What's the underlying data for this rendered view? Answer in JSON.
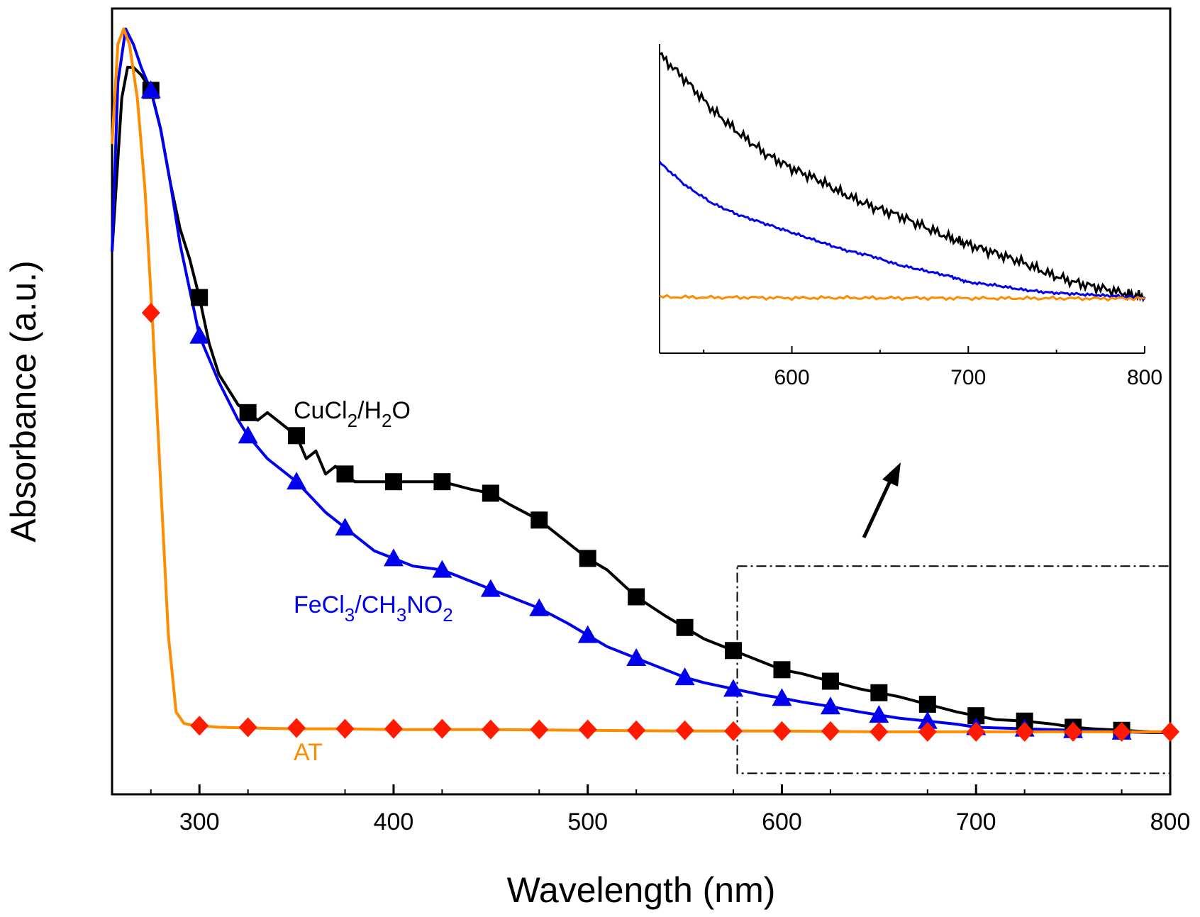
{
  "chart_data": {
    "main": {
      "type": "line",
      "title": "",
      "xlabel": "Wavelength (nm)",
      "ylabel": "Absorbance (a.u.)",
      "xlim": [
        255,
        800
      ],
      "ylim": [
        0,
        1.0
      ],
      "yticks_shown": false,
      "xticks": [
        300,
        400,
        500,
        600,
        700,
        800
      ],
      "xtick_labels": [
        "300",
        "400",
        "500",
        "600",
        "700",
        "800"
      ],
      "series": [
        {
          "name": "CuCl2/H2O",
          "color": "#000000",
          "marker": "square",
          "x": [
            255,
            260,
            263,
            266,
            270,
            275,
            280,
            285,
            290,
            295,
            300,
            305,
            310,
            315,
            320,
            325,
            330,
            335,
            340,
            345,
            350,
            355,
            360,
            365,
            370,
            375,
            380,
            390,
            400,
            410,
            425,
            440,
            450,
            460,
            475,
            490,
            500,
            510,
            525,
            540,
            550,
            560,
            575,
            590,
            600,
            610,
            625,
            640,
            650,
            660,
            675,
            690,
            700,
            710,
            725,
            740,
            750,
            760,
            775,
            790,
            800
          ],
          "y": [
            0.7,
            0.9,
            0.94,
            0.94,
            0.93,
            0.91,
            0.86,
            0.79,
            0.73,
            0.69,
            0.64,
            0.58,
            0.54,
            0.52,
            0.5,
            0.49,
            0.48,
            0.49,
            0.48,
            0.47,
            0.46,
            0.43,
            0.44,
            0.41,
            0.42,
            0.41,
            0.4,
            0.4,
            0.4,
            0.4,
            0.4,
            0.39,
            0.385,
            0.37,
            0.35,
            0.32,
            0.3,
            0.285,
            0.25,
            0.225,
            0.21,
            0.195,
            0.18,
            0.165,
            0.155,
            0.15,
            0.14,
            0.13,
            0.125,
            0.12,
            0.11,
            0.1,
            0.095,
            0.09,
            0.088,
            0.084,
            0.08,
            0.078,
            0.076,
            0.074,
            0.074
          ],
          "marker_x": [
            275,
            300,
            325,
            350,
            375,
            400,
            425,
            450,
            475,
            500,
            525,
            550,
            575,
            600,
            625,
            650,
            675,
            700,
            725,
            750,
            775
          ],
          "marker_y": [
            0.91,
            0.64,
            0.49,
            0.46,
            0.41,
            0.4,
            0.4,
            0.385,
            0.35,
            0.3,
            0.25,
            0.21,
            0.18,
            0.155,
            0.14,
            0.125,
            0.11,
            0.095,
            0.088,
            0.08,
            0.076
          ]
        },
        {
          "name": "FeCl3/CH3NO2",
          "color": "#0000ee",
          "marker": "triangle",
          "x": [
            255,
            258,
            262,
            266,
            270,
            275,
            280,
            285,
            290,
            300,
            310,
            320,
            325,
            335,
            350,
            365,
            375,
            390,
            400,
            410,
            425,
            440,
            450,
            460,
            475,
            490,
            500,
            510,
            525,
            540,
            550,
            560,
            575,
            590,
            600,
            610,
            625,
            640,
            650,
            660,
            675,
            690,
            700,
            725,
            750,
            775,
            790,
            800
          ],
          "y": [
            0.7,
            0.92,
            0.99,
            0.97,
            0.94,
            0.91,
            0.86,
            0.79,
            0.71,
            0.59,
            0.53,
            0.48,
            0.46,
            0.43,
            0.4,
            0.36,
            0.34,
            0.31,
            0.3,
            0.29,
            0.285,
            0.27,
            0.26,
            0.25,
            0.235,
            0.215,
            0.2,
            0.185,
            0.17,
            0.155,
            0.145,
            0.138,
            0.13,
            0.122,
            0.118,
            0.113,
            0.107,
            0.1,
            0.096,
            0.092,
            0.088,
            0.084,
            0.08,
            0.078,
            0.076,
            0.074,
            0.073,
            0.073
          ],
          "marker_x": [
            275,
            300,
            325,
            350,
            375,
            400,
            425,
            450,
            475,
            500,
            525,
            550,
            575,
            600,
            625,
            650,
            675,
            700,
            725,
            750,
            775
          ],
          "marker_y": [
            0.91,
            0.59,
            0.46,
            0.4,
            0.34,
            0.3,
            0.285,
            0.26,
            0.235,
            0.2,
            0.17,
            0.145,
            0.13,
            0.118,
            0.107,
            0.096,
            0.088,
            0.08,
            0.078,
            0.076,
            0.074
          ]
        },
        {
          "name": "AT",
          "color": "#ff8c00",
          "marker": "diamond",
          "marker_color": "#ff1a00",
          "x": [
            255,
            258,
            261,
            264,
            268,
            272,
            276,
            280,
            284,
            288,
            292,
            296,
            300,
            310,
            325,
            350,
            375,
            400,
            450,
            500,
            550,
            600,
            650,
            700,
            750,
            800
          ],
          "y": [
            0.84,
            0.97,
            0.99,
            0.97,
            0.9,
            0.78,
            0.6,
            0.4,
            0.2,
            0.1,
            0.085,
            0.083,
            0.082,
            0.08,
            0.079,
            0.078,
            0.078,
            0.077,
            0.077,
            0.076,
            0.075,
            0.075,
            0.074,
            0.074,
            0.074,
            0.074
          ],
          "marker_x": [
            275,
            300,
            325,
            350,
            375,
            400,
            425,
            450,
            475,
            500,
            525,
            550,
            575,
            600,
            625,
            650,
            675,
            700,
            725,
            750,
            775,
            800
          ],
          "marker_y": [
            0.62,
            0.082,
            0.08,
            0.079,
            0.078,
            0.078,
            0.078,
            0.077,
            0.077,
            0.077,
            0.076,
            0.076,
            0.075,
            0.075,
            0.075,
            0.074,
            0.074,
            0.074,
            0.074,
            0.074,
            0.074,
            0.074
          ]
        }
      ],
      "annotations": {
        "zoom_box_x": [
          577,
          800
        ],
        "zoom_box_y": [
          0.02,
          0.29
        ]
      }
    },
    "inset": {
      "type": "line",
      "xlim": [
        525,
        800
      ],
      "ylim": [
        0,
        1.0
      ],
      "xticks": [
        600,
        700,
        800
      ],
      "xtick_labels": [
        "600",
        "700",
        "800"
      ],
      "series": [
        {
          "name": "CuCl2/H2O",
          "color": "#000000",
          "x": [
            525,
            540,
            555,
            570,
            585,
            600,
            615,
            630,
            645,
            660,
            675,
            690,
            700,
            715,
            730,
            745,
            760,
            775,
            790,
            800
          ],
          "y": [
            0.95,
            0.86,
            0.76,
            0.68,
            0.61,
            0.56,
            0.52,
            0.47,
            0.43,
            0.4,
            0.36,
            0.32,
            0.3,
            0.27,
            0.24,
            0.2,
            0.17,
            0.15,
            0.13,
            0.12
          ]
        },
        {
          "name": "FeCl3/CH3NO2",
          "color": "#0000ee",
          "x": [
            525,
            540,
            555,
            570,
            585,
            600,
            615,
            630,
            645,
            660,
            675,
            690,
            700,
            715,
            730,
            745,
            760,
            775,
            790,
            800
          ],
          "y": [
            0.58,
            0.5,
            0.44,
            0.4,
            0.37,
            0.34,
            0.31,
            0.28,
            0.26,
            0.23,
            0.21,
            0.19,
            0.17,
            0.16,
            0.145,
            0.135,
            0.13,
            0.125,
            0.12,
            0.115
          ]
        },
        {
          "name": "AT",
          "color": "#ff8c00",
          "x": [
            525,
            550,
            575,
            600,
            625,
            650,
            675,
            700,
            725,
            750,
            775,
            800
          ],
          "y": [
            0.12,
            0.118,
            0.118,
            0.116,
            0.117,
            0.116,
            0.116,
            0.115,
            0.115,
            0.115,
            0.114,
            0.115
          ]
        }
      ]
    },
    "series_labels": {
      "cucl": {
        "main": "CuCl",
        "sub1": "2",
        "mid": "/H",
        "sub2": "2",
        "end": "O"
      },
      "fecl": {
        "main": "FeCl",
        "sub1": "3",
        "mid": "/CH",
        "sub2": "3",
        "mid2": "NO",
        "sub3": "2"
      },
      "at": "AT"
    }
  }
}
